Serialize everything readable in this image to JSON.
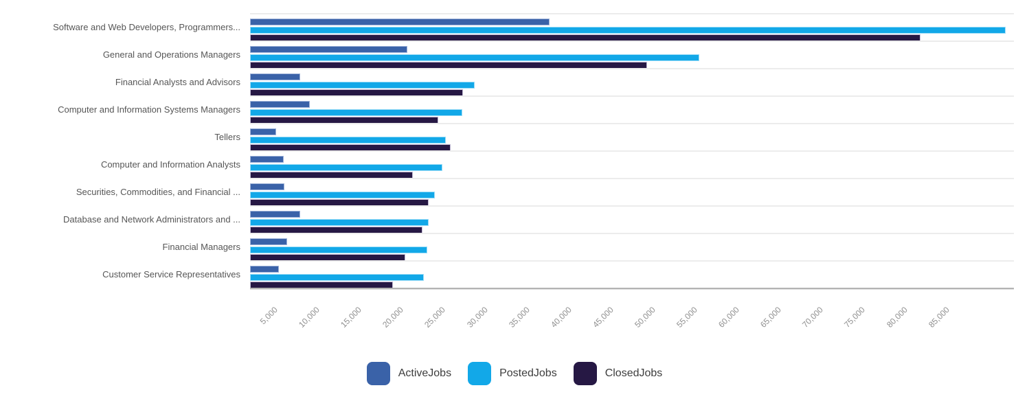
{
  "chart_data": {
    "type": "bar",
    "orientation": "horizontal",
    "title": "",
    "xlabel": "",
    "ylabel": "",
    "xlim": [
      0,
      91000
    ],
    "x_tick_labels": [
      "5,000",
      "10,000",
      "15,000",
      "20,000",
      "25,000",
      "30,000",
      "35,000",
      "40,000",
      "45,000",
      "50,000",
      "55,000",
      "60,000",
      "65,000",
      "70,000",
      "75,000",
      "80,000",
      "85,000"
    ],
    "grid": "horizontal-row-separators-only",
    "legend_position": "bottom-center",
    "categories": [
      "Software and Web Developers, Programmers...",
      "General and Operations Managers",
      "Financial Analysts and Advisors",
      "Computer and Information Systems Managers",
      "Tellers",
      "Computer and Information Analysts",
      "Securities, Commodities, and Financial ...",
      "Database and Network Administrators and ...",
      "Financial Managers",
      "Customer Service Representatives"
    ],
    "series": [
      {
        "name": "ActiveJobs",
        "color": "#3A62A8",
        "border_color": "#9FB3D9",
        "values": [
          35700,
          18700,
          6000,
          7100,
          3100,
          4000,
          4100,
          6000,
          4400,
          3400
        ]
      },
      {
        "name": "PostedJobs",
        "color": "#12A8E8",
        "border_color": "#9BDCF7",
        "values": [
          90000,
          53500,
          26800,
          25300,
          23300,
          22900,
          22000,
          21300,
          21100,
          20700
        ]
      },
      {
        "name": "ClosedJobs",
        "color": "#261844",
        "border_color": "#BFB8D2",
        "values": [
          79900,
          47300,
          25400,
          22400,
          23900,
          19400,
          21300,
          20500,
          18500,
          17000
        ]
      }
    ]
  },
  "legend": {
    "items": [
      {
        "label": "ActiveJobs",
        "color": "#3A62A8"
      },
      {
        "label": "PostedJobs",
        "color": "#12A8E8"
      },
      {
        "label": "ClosedJobs",
        "color": "#261844"
      }
    ]
  },
  "axis": {
    "line_color": "#b3b3b3",
    "separator_color": "#ececec",
    "tick_label_color": "#8f8f8f",
    "category_label_color": "#565656"
  }
}
